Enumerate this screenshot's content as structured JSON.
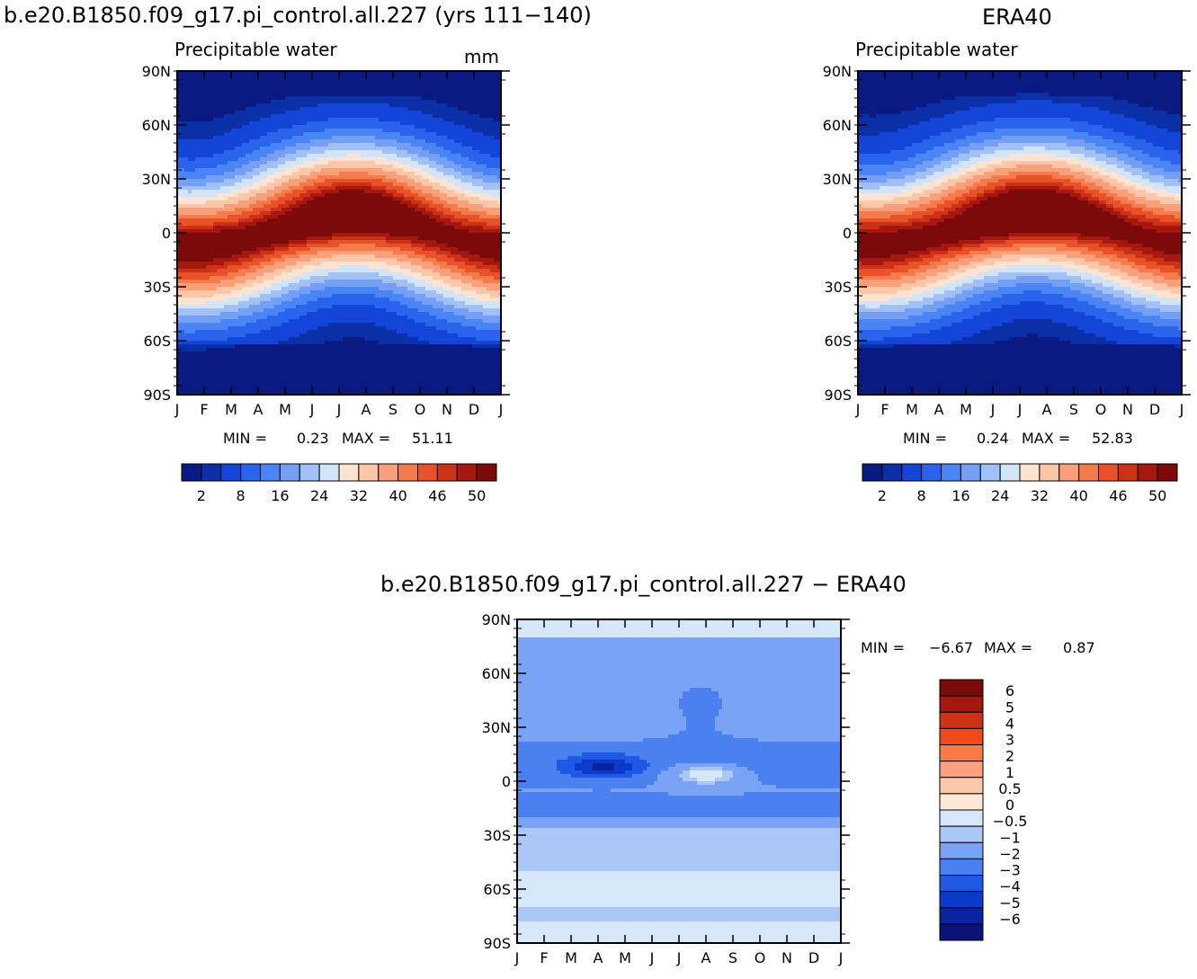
{
  "chart_data": [
    {
      "type": "heatmap",
      "title": "b.e20.B1850.f09_g17.pi_control.all.227 (yrs 111-140)",
      "title_display": "b.e20.B1850.f09_g17.pi_control.all.227 (yrs 111−140)",
      "subtitle": "Precipitable water",
      "units": "mm",
      "x_categories": [
        "J",
        "F",
        "M",
        "A",
        "M",
        "J",
        "J",
        "A",
        "S",
        "O",
        "N",
        "D",
        "J"
      ],
      "y_ticks": [
        "90N",
        "60N",
        "30N",
        "0",
        "30S",
        "60S",
        "90S"
      ],
      "y_range": [
        -90,
        90
      ],
      "min_label": "MIN =",
      "min_value": "0.23",
      "max_label": "MAX =",
      "max_value": "51.11",
      "colorbar": {
        "orientation": "horizontal",
        "tick_labels": [
          "2",
          "8",
          "16",
          "24",
          "32",
          "40",
          "46",
          "50"
        ],
        "colors": [
          "#0b1a82",
          "#0a2fa6",
          "#1346d8",
          "#2a64ec",
          "#4b85f5",
          "#759ff5",
          "#a1c0f7",
          "#d2e4fa",
          "#fde4d2",
          "#fcc6a9",
          "#f9a07a",
          "#f57a4c",
          "#e8512a",
          "#cc3316",
          "#a5170f",
          "#7d0a0a"
        ]
      },
      "field": {
        "itcz_lat_jan": -5,
        "itcz_lat_jul": 8,
        "itcz_peak_months": [
          6.5,
          2.2
        ],
        "polar_min_s": 0.23
      }
    },
    {
      "type": "heatmap",
      "title": "ERA40",
      "subtitle": "Precipitable water",
      "x_categories": [
        "J",
        "F",
        "M",
        "A",
        "M",
        "J",
        "J",
        "A",
        "S",
        "O",
        "N",
        "D",
        "J"
      ],
      "y_ticks": [
        "90N",
        "60N",
        "30N",
        "0",
        "30S",
        "60S",
        "90S"
      ],
      "y_range": [
        -90,
        90
      ],
      "min_label": "MIN =",
      "min_value": "0.24",
      "max_label": "MAX =",
      "max_value": "52.83",
      "colorbar": {
        "orientation": "horizontal",
        "tick_labels": [
          "2",
          "8",
          "16",
          "24",
          "32",
          "40",
          "46",
          "50"
        ],
        "colors": [
          "#0b1a82",
          "#0a2fa6",
          "#1346d8",
          "#2a64ec",
          "#4b85f5",
          "#759ff5",
          "#a1c0f7",
          "#d2e4fa",
          "#fde4d2",
          "#fcc6a9",
          "#f9a07a",
          "#f57a4c",
          "#e8512a",
          "#cc3316",
          "#a5170f",
          "#7d0a0a"
        ]
      },
      "field": {
        "itcz_lat_jan": -3,
        "itcz_lat_jul": 9,
        "itcz_peak_months": [
          7.0,
          3.5
        ],
        "polar_min_s": 0.24
      }
    },
    {
      "type": "heatmap",
      "title": "b.e20.B1850.f09_g17.pi_control.all.227 - ERA40",
      "title_display": "b.e20.B1850.f09_g17.pi_control.all.227 − ERA40",
      "x_categories": [
        "J",
        "F",
        "M",
        "A",
        "M",
        "J",
        "J",
        "A",
        "S",
        "O",
        "N",
        "D",
        "J"
      ],
      "y_ticks": [
        "90N",
        "60N",
        "30N",
        "0",
        "30S",
        "60S",
        "90S"
      ],
      "y_range": [
        -90,
        90
      ],
      "min_label": "MIN =",
      "min_value": "−6.67",
      "max_label": "MAX =",
      "max_value": "0.87",
      "colorbar": {
        "orientation": "vertical",
        "tick_labels": [
          "6",
          "5",
          "4",
          "3",
          "2",
          "1",
          "0.5",
          "0",
          "−0.5",
          "−1",
          "−2",
          "−3",
          "−4",
          "−5",
          "−6"
        ],
        "colors": [
          "#7d0a0a",
          "#a5170f",
          "#cc3316",
          "#f04a1c",
          "#f97a45",
          "#fba27c",
          "#fdc8aa",
          "#fde8d8",
          "#d7e7fa",
          "#abc7f7",
          "#7aa3f5",
          "#4b80f0",
          "#2058e6",
          "#0b3bc8",
          "#0a24a0",
          "#0b137a"
        ]
      },
      "levels": [
        -6,
        -5,
        -4,
        -3,
        -2,
        -1,
        -0.5,
        0,
        0.5,
        1,
        2,
        3,
        4,
        5,
        6
      ]
    }
  ]
}
